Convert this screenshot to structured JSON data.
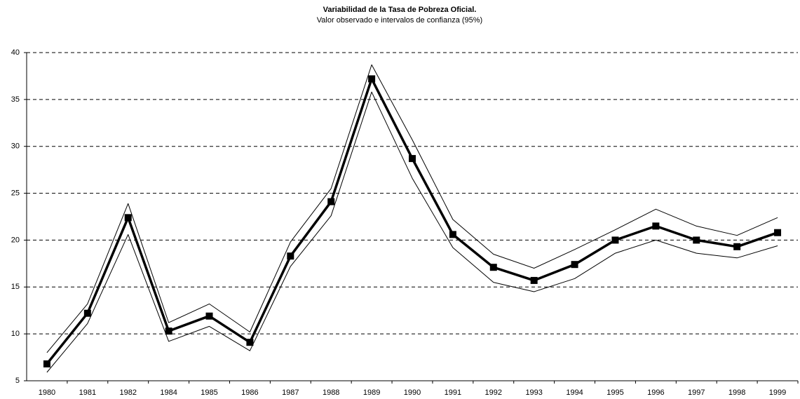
{
  "chart_data": {
    "type": "line",
    "title": "Variabilidad de la Tasa de Pobreza Oficial.",
    "subtitle": "Valor observado e intervalos de confianza (95%)",
    "categories": [
      "1980",
      "1981",
      "1982",
      "1984",
      "1985",
      "1986",
      "1987",
      "1988",
      "1989",
      "1990",
      "1991",
      "1992",
      "1993",
      "1994",
      "1995",
      "1996",
      "1997",
      "1998",
      "1999"
    ],
    "series": [
      {
        "color": "#000000",
        "line_width": 1,
        "marker": "none",
        "values": [
          8.0,
          13.2,
          23.9,
          11.2,
          13.2,
          10.2,
          19.8,
          25.5,
          38.7,
          30.7,
          22.2,
          18.5,
          17.0,
          19.0,
          21.1,
          23.3,
          21.5,
          20.5,
          22.4
        ]
      },
      {
        "color": "#000000",
        "line_width": 1,
        "marker": "none",
        "values": [
          5.9,
          11.1,
          20.6,
          9.2,
          10.8,
          8.2,
          17.2,
          22.6,
          35.8,
          26.6,
          19.2,
          15.5,
          14.5,
          15.9,
          18.6,
          20.0,
          18.6,
          18.1,
          19.4
        ]
      },
      {
        "color": "#000000",
        "line_width": 3.5,
        "marker": "square",
        "values": [
          6.8,
          12.2,
          22.4,
          10.3,
          11.9,
          9.1,
          18.3,
          24.1,
          37.2,
          28.7,
          20.6,
          17.1,
          15.7,
          17.4,
          20.0,
          21.5,
          20.0,
          19.3,
          20.8
        ]
      }
    ],
    "ylim": [
      5,
      40
    ],
    "yticks": [
      5,
      10,
      15,
      20,
      25,
      30,
      35,
      40
    ],
    "grid": true
  }
}
